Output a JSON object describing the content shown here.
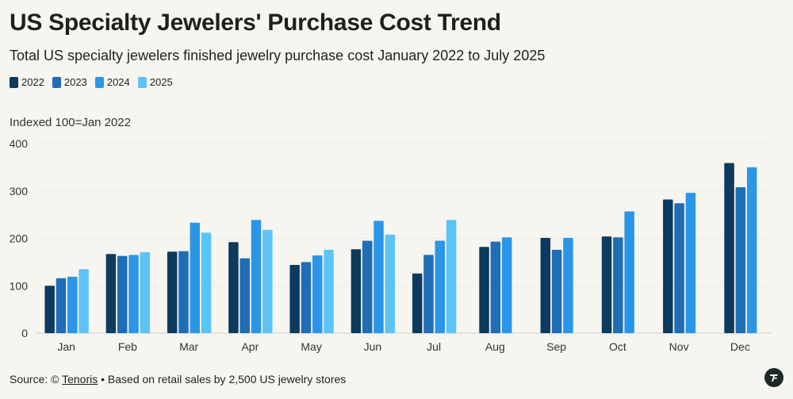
{
  "chart_data": {
    "type": "bar",
    "title": "US Specialty Jewelers' Purchase Cost Trend",
    "subtitle": "Total US specialty jewelers finished jewelry purchase cost January 2022 to July 2025",
    "ylabel": "Indexed 100=Jan 2022",
    "xlabel": "",
    "ylim": [
      0,
      400
    ],
    "yticks": [
      0,
      100,
      200,
      300,
      400
    ],
    "grid": true,
    "legend_position": "top-left",
    "categories": [
      "Jan",
      "Feb",
      "Mar",
      "Apr",
      "May",
      "Jun",
      "Jul",
      "Aug",
      "Sep",
      "Oct",
      "Nov",
      "Dec"
    ],
    "series": [
      {
        "name": "2022",
        "color": "#0d3b5e",
        "values": [
          100,
          167,
          172,
          192,
          144,
          177,
          126,
          182,
          201,
          204,
          282,
          359
        ]
      },
      {
        "name": "2023",
        "color": "#1f6db5",
        "values": [
          116,
          163,
          173,
          158,
          150,
          195,
          165,
          193,
          176,
          202,
          274,
          308
        ]
      },
      {
        "name": "2024",
        "color": "#2b96e8",
        "values": [
          119,
          165,
          233,
          239,
          164,
          237,
          195,
          202,
          201,
          257,
          296,
          350
        ]
      },
      {
        "name": "2025",
        "color": "#5cc3f7",
        "values": [
          135,
          171,
          212,
          218,
          176,
          208,
          239,
          null,
          null,
          null,
          null,
          null
        ]
      }
    ]
  },
  "footer": {
    "source_prefix": "Source: © ",
    "source_link": "Tenoris",
    "source_suffix": " • Based on retail sales by 2,500 US jewelry stores"
  },
  "logo": {
    "icon": "tenoris-logo-icon"
  }
}
